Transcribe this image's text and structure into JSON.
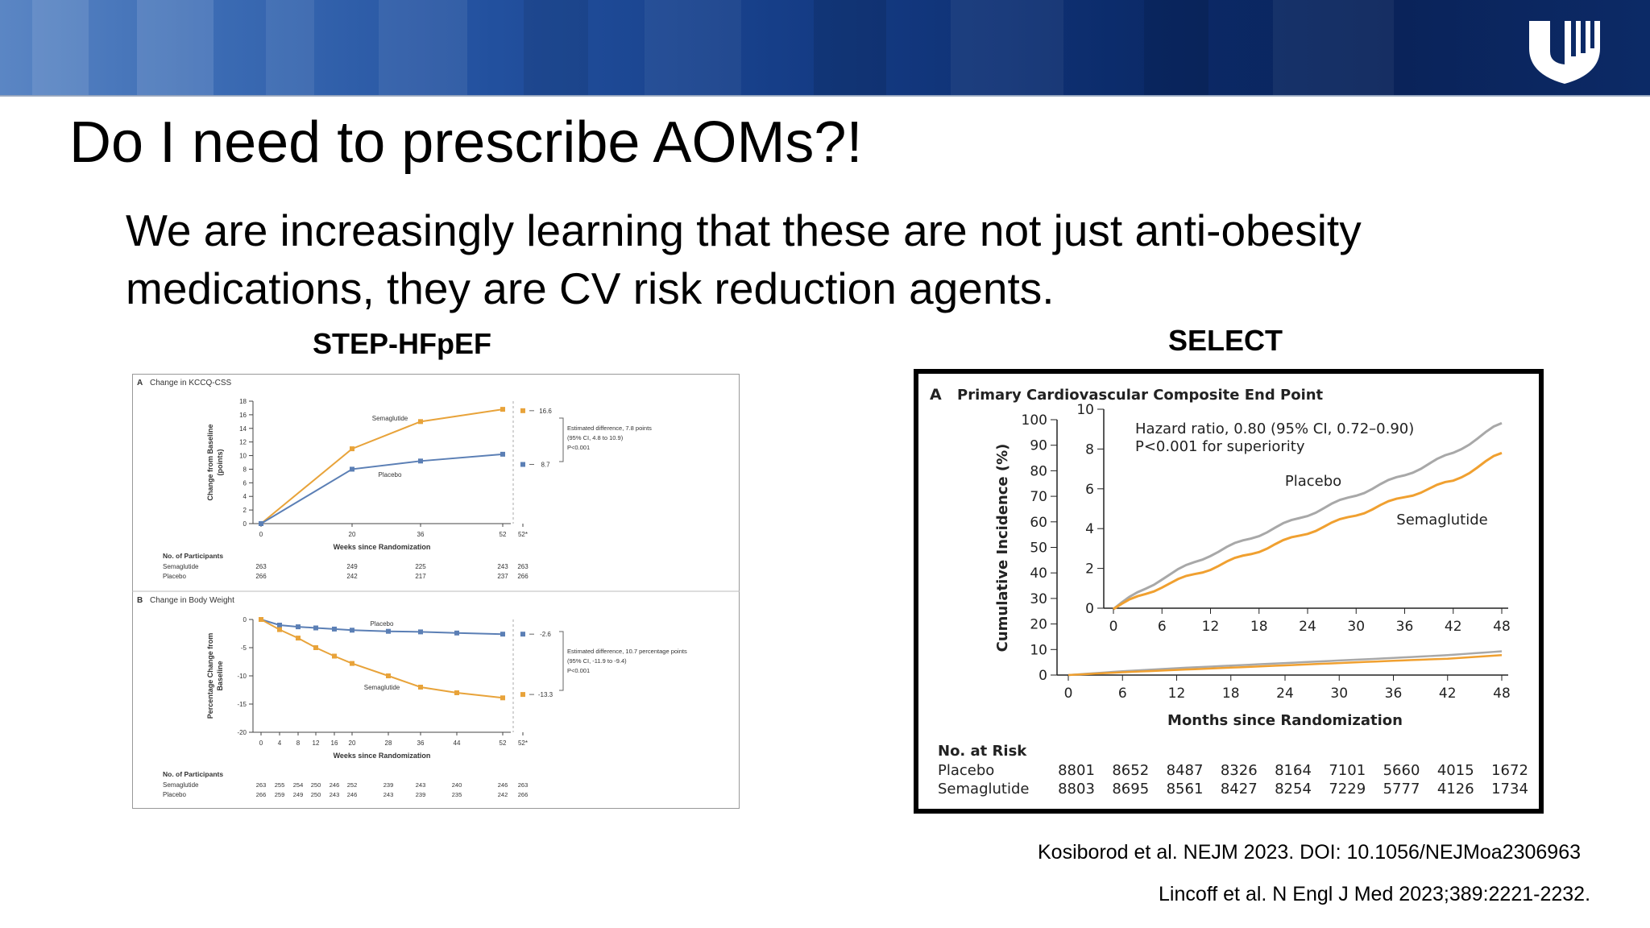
{
  "slide": {
    "title": "Do I need to prescribe AOMs?!",
    "body": "We are increasingly learning that these are not just anti-obesity medications, they are CV risk reduction agents.",
    "caption_left": "STEP-HFpEF",
    "caption_right": "SELECT",
    "ref1": "Kosiborod et al. NEJM 2023. DOI: 10.1056/NEJMoa2306963",
    "ref2": "Lincoff et al. N Engl J Med 2023;389:2221-2232.",
    "colors": {
      "banner_dark": "#0a235a",
      "banner_light": "#5b86c4",
      "orange": "#e8a33a",
      "blue": "#5b7fb5",
      "gray": "#a8a8a8",
      "sel_orange": "#f0a030"
    }
  },
  "chart_data": [
    {
      "type": "line",
      "panel_letter": "A",
      "title": "Change in KCCQ-CSS",
      "xlabel": "Weeks since Randomization",
      "ylabel": "Change from Baseline (points)",
      "ylim": [
        0,
        18
      ],
      "xticks": [
        "0",
        "20",
        "36",
        "52",
        "52*"
      ],
      "yticks": [
        "0",
        "2",
        "4",
        "6",
        "8",
        "10",
        "12",
        "14",
        "16",
        "18"
      ],
      "series": [
        {
          "name": "Semaglutide",
          "x": [
            0,
            20,
            36,
            52
          ],
          "values": [
            0,
            11,
            15,
            16.8
          ],
          "final": 16.6,
          "final_label": "16.6"
        },
        {
          "name": "Placebo",
          "x": [
            0,
            20,
            36,
            52
          ],
          "values": [
            0,
            8,
            9.2,
            10.2
          ],
          "final": 8.7,
          "final_label": "8.7"
        }
      ],
      "annotation": [
        "Estimated difference, 7.8 points",
        "(95% CI, 4.8 to 10.9)",
        "P<0.001"
      ],
      "at_risk": {
        "header": "No. of Participants",
        "rows": [
          {
            "label": "Semaglutide",
            "values": [
              "263",
              "249",
              "225",
              "243",
              "263"
            ]
          },
          {
            "label": "Placebo",
            "values": [
              "266",
              "242",
              "217",
              "237",
              "266"
            ]
          }
        ]
      }
    },
    {
      "type": "line",
      "panel_letter": "B",
      "title": "Change in Body Weight",
      "xlabel": "Weeks since Randomization",
      "ylabel": "Percentage Change from Baseline",
      "ylim": [
        -20,
        0
      ],
      "xticks": [
        "0",
        "4",
        "8",
        "12",
        "16",
        "20",
        "28",
        "36",
        "44",
        "52",
        "52*"
      ],
      "yticks": [
        "0",
        "-5",
        "-10",
        "-15",
        "-20"
      ],
      "series": [
        {
          "name": "Placebo",
          "x": [
            0,
            4,
            8,
            12,
            16,
            20,
            28,
            36,
            44,
            52
          ],
          "values": [
            0,
            -1,
            -1.3,
            -1.5,
            -1.7,
            -1.9,
            -2.1,
            -2.2,
            -2.4,
            -2.6
          ],
          "final": -2.6,
          "final_label": "-2.6"
        },
        {
          "name": "Semaglutide",
          "x": [
            0,
            4,
            8,
            12,
            16,
            20,
            28,
            36,
            44,
            52
          ],
          "values": [
            0,
            -1.8,
            -3.3,
            -5,
            -6.5,
            -7.8,
            -10,
            -12,
            -13,
            -13.9
          ],
          "final": -13.3,
          "final_label": "-13.3"
        }
      ],
      "annotation": [
        "Estimated difference, 10.7 percentage points",
        "(95% CI, -11.9 to -9.4)",
        "P<0.001"
      ],
      "at_risk": {
        "header": "No. of Participants",
        "rows": [
          {
            "label": "Semaglutide",
            "values": [
              "263",
              "255",
              "254",
              "250",
              "246",
              "252",
              "239",
              "243",
              "240",
              "246",
              "263"
            ]
          },
          {
            "label": "Placebo",
            "values": [
              "266",
              "259",
              "249",
              "250",
              "243",
              "246",
              "243",
              "239",
              "235",
              "242",
              "266"
            ]
          }
        ]
      }
    },
    {
      "type": "line",
      "panel_letter": "A",
      "title": "Primary Cardiovascular Composite End Point",
      "xlabel": "Months since Randomization",
      "ylabel": "Cumulative Incidence (%)",
      "xlim": [
        0,
        48
      ],
      "ylim": [
        0,
        100
      ],
      "inset_ylim": [
        0,
        10
      ],
      "xticks": [
        "0",
        "6",
        "12",
        "18",
        "24",
        "30",
        "36",
        "42",
        "48"
      ],
      "yticks": [
        "0",
        "10",
        "20",
        "30",
        "40",
        "50",
        "60",
        "70",
        "80",
        "90",
        "100"
      ],
      "inset_yticks": [
        "0",
        "2",
        "4",
        "6",
        "8",
        "10"
      ],
      "annotation": [
        "Hazard ratio, 0.80 (95% CI, 0.72–0.90)",
        "P<0.001 for superiority"
      ],
      "series": [
        {
          "name": "Placebo",
          "x": [
            0,
            6,
            12,
            18,
            24,
            30,
            36,
            42,
            48
          ],
          "values": [
            0,
            1.5,
            2.7,
            3.7,
            4.7,
            5.7,
            6.7,
            7.8,
            9.3
          ]
        },
        {
          "name": "Semaglutide",
          "x": [
            0,
            6,
            12,
            18,
            24,
            30,
            36,
            42,
            48
          ],
          "values": [
            0,
            1.1,
            2,
            2.9,
            3.8,
            4.7,
            5.6,
            6.4,
            7.8
          ]
        }
      ],
      "at_risk": {
        "header": "No. at Risk",
        "rows": [
          {
            "label": "Placebo",
            "values": [
              "8801",
              "8652",
              "8487",
              "8326",
              "8164",
              "7101",
              "5660",
              "4015",
              "1672"
            ]
          },
          {
            "label": "Semaglutide",
            "values": [
              "8803",
              "8695",
              "8561",
              "8427",
              "8254",
              "7229",
              "5777",
              "4126",
              "1734"
            ]
          }
        ]
      }
    }
  ]
}
